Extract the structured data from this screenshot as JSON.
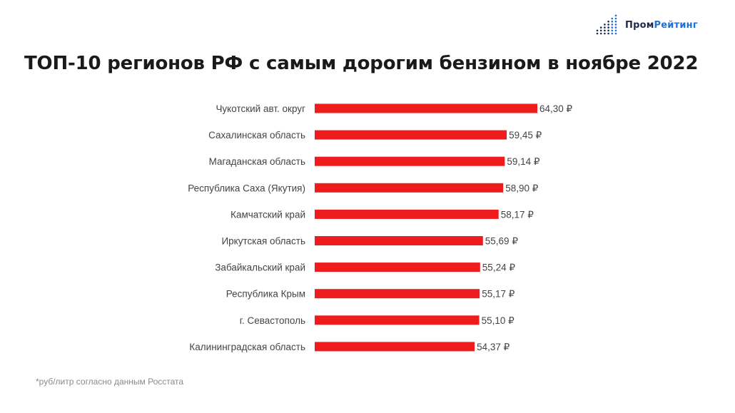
{
  "logo": {
    "part1": "Пром",
    "part2": "Рейтинг"
  },
  "footnote": "*руб/литр согласно данным Росстата",
  "chart_data": {
    "type": "bar",
    "orientation": "horizontal",
    "title": "ТОП-10 регионов РФ с самым дорогим бензином в ноябре 2022",
    "categories": [
      "Чукотский авт. округ",
      "Сахалинская область",
      "Магаданская область",
      "Республика Саха (Якутия)",
      "Камчатский край",
      "Иркутская область",
      "Забайкальский край",
      "Республика Крым",
      "г. Севастополь",
      "Калининградская область"
    ],
    "values": [
      64.3,
      59.45,
      59.14,
      58.9,
      58.17,
      55.69,
      55.24,
      55.17,
      55.1,
      54.37
    ],
    "value_labels": [
      "64,30 ₽",
      "59,45 ₽",
      "59,14 ₽",
      "58,90 ₽",
      "58,17 ₽",
      "55,69 ₽",
      "55,24 ₽",
      "55,17 ₽",
      "55,10 ₽",
      "54,37 ₽"
    ],
    "xlim": [
      29.05,
      64.3
    ],
    "grid": false,
    "legend": "none",
    "bar_color": "#ee1c1c"
  }
}
